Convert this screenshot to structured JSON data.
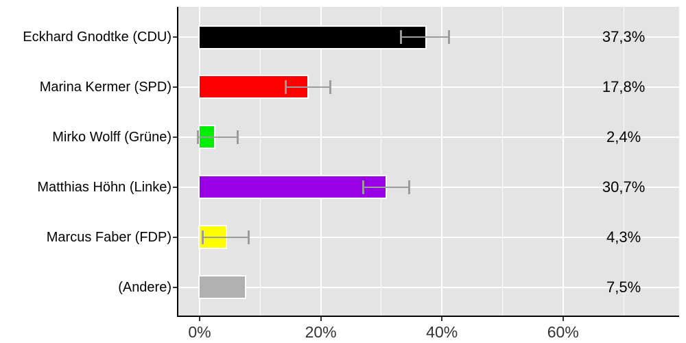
{
  "chart_data": {
    "type": "bar",
    "orientation": "horizontal",
    "title": "",
    "xlabel": "",
    "ylabel": "",
    "x_axis": {
      "unit": "percent",
      "ticks": [
        0,
        20,
        40,
        60
      ],
      "tick_labels": [
        "0%",
        "20%",
        "40%",
        "60%"
      ],
      "minor_ticks": [
        10,
        30,
        50,
        70
      ],
      "xlim": [
        -3.6,
        79.2
      ]
    },
    "grid": {
      "major": true,
      "minor": true
    },
    "legend": null,
    "rows": [
      {
        "label": "Eckhard Gnodtke (CDU)",
        "value": 37.3,
        "value_label": "37,3%",
        "color": "#000000",
        "error_low": 33.2,
        "error_high": 41.2
      },
      {
        "label": "Marina Kermer (SPD)",
        "value": 17.8,
        "value_label": "17,8%",
        "color": "#FF0000",
        "error_low": 14.2,
        "error_high": 21.6
      },
      {
        "label": "Mirko Wolff (Grüne)",
        "value": 2.4,
        "value_label": "2,4%",
        "color": "#00EE00",
        "error_low": -0.3,
        "error_high": 6.3
      },
      {
        "label": "Matthias Höhn (Linke)",
        "value": 30.7,
        "value_label": "30,7%",
        "color": "#9900E6",
        "error_low": 26.9,
        "error_high": 34.6
      },
      {
        "label": "Marcus Faber (FDP)",
        "value": 4.3,
        "value_label": "4,3%",
        "color": "#FFFF00",
        "error_low": 0.4,
        "error_high": 8.1
      },
      {
        "label": "(Andere)",
        "value": 7.5,
        "value_label": "7,5%",
        "color": "#B0B0B0",
        "error_low": null,
        "error_high": null
      }
    ]
  },
  "theme": {
    "panel_bg": "#E4E4E4",
    "grid_color": "#FFFFFF",
    "axis_color": "#000000",
    "errorbar_color": "#9C9C9C",
    "bar_outline": "#FFFFFF",
    "tick_color": "#333333",
    "tick_label_color": "#333333",
    "text_color": "#000000"
  }
}
